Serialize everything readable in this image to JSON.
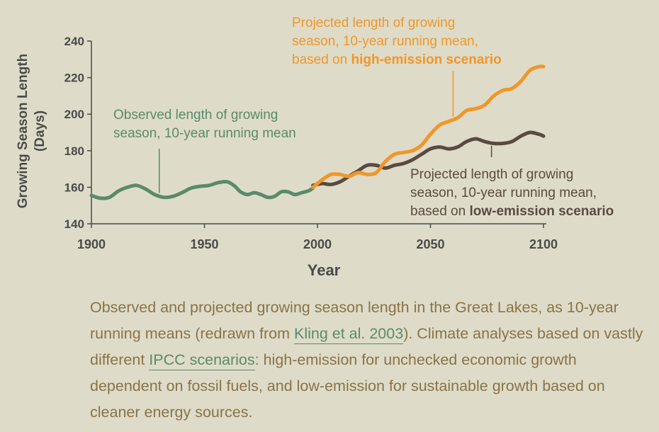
{
  "chart_data": {
    "type": "line",
    "xlabel": "Year",
    "ylabel": "Growing Season Length",
    "ylabel_unit": "(Days)",
    "xlim": [
      1900,
      2100
    ],
    "ylim": [
      140,
      240
    ],
    "xticks": [
      "1900",
      "1950",
      "2000",
      "2050",
      "2100"
    ],
    "yticks": [
      "140",
      "160",
      "180",
      "200",
      "220",
      "240"
    ],
    "grid": false,
    "series": [
      {
        "key": "observed",
        "color": "#5a8a6a",
        "x": [
          1900,
          1904,
          1908,
          1912,
          1916,
          1920,
          1924,
          1928,
          1932,
          1936,
          1940,
          1944,
          1948,
          1952,
          1956,
          1960,
          1963,
          1966,
          1969,
          1972,
          1975,
          1978,
          1981,
          1984,
          1987,
          1990,
          1993,
          1996,
          1998
        ],
        "values": [
          155.5,
          154,
          154.5,
          158,
          160,
          161,
          159,
          156,
          154.5,
          155,
          157,
          159.5,
          160.5,
          161,
          162.5,
          163,
          161,
          157.5,
          156,
          157,
          156,
          154.5,
          155,
          157.5,
          157.5,
          156,
          157,
          158,
          159.5
        ]
      },
      {
        "key": "high",
        "color": "#f0962a",
        "x": [
          1998,
          2002,
          2006,
          2010,
          2014,
          2018,
          2022,
          2026,
          2030,
          2034,
          2038,
          2042,
          2046,
          2050,
          2054,
          2058,
          2062,
          2066,
          2070,
          2074,
          2078,
          2082,
          2086,
          2090,
          2094,
          2098,
          2100
        ],
        "values": [
          160,
          164,
          167,
          167,
          166,
          168,
          167,
          168,
          174,
          178,
          179,
          180,
          183,
          189,
          194,
          196,
          198,
          202,
          203,
          205,
          210,
          213,
          214,
          218,
          224,
          226,
          226
        ]
      },
      {
        "key": "low",
        "color": "#5a4a40",
        "x": [
          1998,
          2002,
          2006,
          2010,
          2014,
          2018,
          2022,
          2026,
          2030,
          2034,
          2038,
          2042,
          2046,
          2050,
          2054,
          2058,
          2062,
          2066,
          2070,
          2074,
          2078,
          2082,
          2086,
          2090,
          2094,
          2098,
          2100
        ],
        "values": [
          161,
          162,
          161.5,
          163,
          166,
          169,
          172,
          172,
          170.5,
          172,
          173,
          175,
          178,
          181,
          182,
          181,
          182,
          185,
          186.5,
          185,
          184,
          184,
          185,
          188,
          190,
          189,
          188
        ]
      }
    ],
    "annotations": {
      "observed": {
        "lines": [
          [
            {
              "text": "Observed length of growing",
              "bold": false
            }
          ],
          [
            {
              "text": "season, 10-year running mean",
              "bold": false
            }
          ]
        ],
        "pointer_year": 1930
      },
      "high": {
        "lines": [
          [
            {
              "text": "Projected length of growing",
              "bold": false
            }
          ],
          [
            {
              "text": "season, 10-year running mean,",
              "bold": false
            }
          ],
          [
            {
              "text": "based on ",
              "bold": false
            },
            {
              "text": "high-emission scenario",
              "bold": true
            }
          ]
        ],
        "pointer_year": 2060
      },
      "low": {
        "lines": [
          [
            {
              "text": "Projected length of growing",
              "bold": false
            }
          ],
          [
            {
              "text": "season, 10-year running mean,",
              "bold": false
            }
          ],
          [
            {
              "text": "based on ",
              "bold": false
            },
            {
              "text": "low-emission scenario",
              "bold": true
            }
          ]
        ],
        "pointer_year": 2077
      }
    }
  },
  "caption": {
    "part1": "Observed and projected growing season length in the Great Lakes, as 10-year running means (redrawn from ",
    "link1": "Kling et al. 2003",
    "part2": "). Climate analyses based on vastly different ",
    "link2": "IPCC scenarios",
    "part3": ": high-emission for unchecked economic growth dependent on fossil fuels, and low-emission for sustainable growth based on cleaner energy sources."
  },
  "colors": {
    "background": "#dedcc8",
    "axis_text": "#4a4a4a",
    "caption_text": "#8a7248",
    "link": "#5a8a6a"
  }
}
